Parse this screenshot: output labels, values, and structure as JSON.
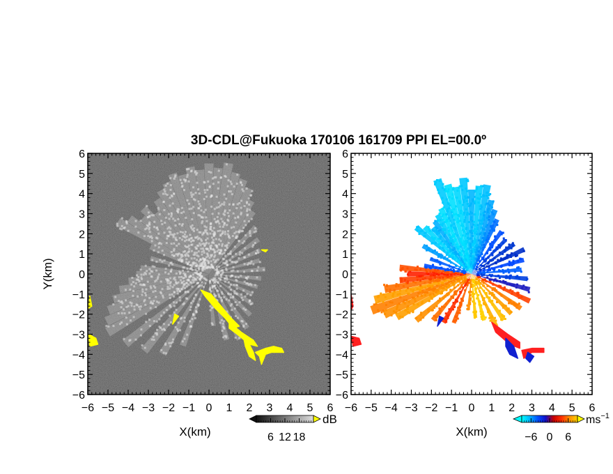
{
  "chart_data": {
    "type": "heatmap",
    "title": "3D-CDL@Fukuoka 170106 161709 PPI EL=00.0º",
    "panels": [
      {
        "id": "left",
        "quantity": "reflectivity (dB)",
        "xlabel": "X(km)",
        "ylabel": "Y(km)",
        "xlim": [
          -6,
          6
        ],
        "ylim": [
          -6,
          6
        ],
        "xticks": [
          "−6",
          "−5",
          "−4",
          "−3",
          "−2",
          "−1",
          "0",
          "1",
          "2",
          "3",
          "4",
          "5",
          "6"
        ],
        "yticks": [
          "6",
          "5",
          "4",
          "3",
          "2",
          "1",
          "0",
          "−1",
          "−2",
          "−3",
          "−4",
          "−5",
          "−6"
        ],
        "background": "#1e1e1e",
        "echo_color": "#e6e6e6",
        "clutter_color": "#ffff00",
        "colorbar": {
          "unit": "dB",
          "ticks": [
            "6",
            "12",
            "18"
          ],
          "tick_values": [
            6,
            12,
            18
          ],
          "range": [
            0,
            24
          ],
          "colors": [
            "#111111",
            "#555555",
            "#999999",
            "#dddddd"
          ],
          "extend_low": "#111111",
          "extend_high": "#ffff00"
        },
        "clutter_regions": [
          [
            [
              -5.9,
              -1.1
            ],
            [
              -5.8,
              -1.6
            ],
            [
              -5.95,
              -1.7
            ]
          ],
          [
            [
              -5.95,
              -3.0
            ],
            [
              -5.6,
              -3.2
            ],
            [
              -5.5,
              -3.5
            ],
            [
              -5.9,
              -3.6
            ]
          ],
          [
            [
              -0.4,
              -0.8
            ],
            [
              0.1,
              -1.0
            ],
            [
              0.6,
              -1.6
            ],
            [
              1.1,
              -2.2
            ],
            [
              1.5,
              -2.6
            ],
            [
              1.2,
              -2.7
            ],
            [
              0.8,
              -2.2
            ],
            [
              0.3,
              -1.7
            ],
            [
              -0.2,
              -1.1
            ]
          ],
          [
            [
              1.0,
              -2.4
            ],
            [
              1.6,
              -2.9
            ],
            [
              2.2,
              -3.3
            ],
            [
              2.4,
              -3.6
            ],
            [
              2.0,
              -3.5
            ],
            [
              1.4,
              -3.0
            ],
            [
              1.0,
              -2.7
            ]
          ],
          [
            [
              1.7,
              -3.1
            ],
            [
              2.0,
              -3.5
            ],
            [
              2.2,
              -3.9
            ],
            [
              2.3,
              -4.3
            ],
            [
              2.0,
              -4.1
            ],
            [
              1.8,
              -3.6
            ]
          ],
          [
            [
              2.3,
              -3.9
            ],
            [
              2.8,
              -3.7
            ],
            [
              3.2,
              -3.6
            ],
            [
              3.6,
              -3.7
            ],
            [
              3.7,
              -3.9
            ],
            [
              3.1,
              -3.9
            ],
            [
              2.8,
              -4.0
            ],
            [
              2.6,
              -4.5
            ],
            [
              2.5,
              -4.1
            ]
          ],
          [
            [
              -1.7,
              -2.0
            ],
            [
              -1.5,
              -2.1
            ],
            [
              -1.8,
              -2.5
            ]
          ],
          [
            [
              2.6,
              1.2
            ],
            [
              2.9,
              1.2
            ],
            [
              2.8,
              1.1
            ]
          ]
        ],
        "rays": [
          {
            "az": 300,
            "len": 5.2
          },
          {
            "az": 305,
            "len": 4.8
          },
          {
            "az": 310,
            "len": 4.3
          },
          {
            "az": 315,
            "len": 4.6
          },
          {
            "az": 320,
            "len": 4.0
          },
          {
            "az": 325,
            "len": 4.5
          },
          {
            "az": 330,
            "len": 4.8
          },
          {
            "az": 335,
            "len": 5.0
          },
          {
            "az": 340,
            "len": 5.3
          },
          {
            "az": 345,
            "len": 5.1
          },
          {
            "az": 350,
            "len": 5.4
          },
          {
            "az": 355,
            "len": 5.2
          },
          {
            "az": 0,
            "len": 5.5
          },
          {
            "az": 5,
            "len": 5.3
          },
          {
            "az": 10,
            "len": 5.6
          },
          {
            "az": 15,
            "len": 5.2
          },
          {
            "az": 20,
            "len": 5.0
          },
          {
            "az": 25,
            "len": 4.7
          },
          {
            "az": 30,
            "len": 4.2
          },
          {
            "az": 35,
            "len": 3.8
          },
          {
            "az": 45,
            "len": 3.3
          },
          {
            "az": 55,
            "len": 3.0
          },
          {
            "az": 65,
            "len": 2.8
          },
          {
            "az": 75,
            "len": 2.6
          },
          {
            "az": 85,
            "len": 2.8
          },
          {
            "az": 95,
            "len": 2.6
          },
          {
            "az": 105,
            "len": 2.5
          },
          {
            "az": 115,
            "len": 2.4
          },
          {
            "az": 125,
            "len": 2.6
          },
          {
            "az": 135,
            "len": 2.9
          },
          {
            "az": 145,
            "len": 3.3
          },
          {
            "az": 155,
            "len": 3.6
          },
          {
            "az": 165,
            "len": 3.4
          },
          {
            "az": 175,
            "len": 2.6
          },
          {
            "az": 200,
            "len": 3.8
          },
          {
            "az": 210,
            "len": 4.6
          },
          {
            "az": 220,
            "len": 5.0
          },
          {
            "az": 230,
            "len": 5.4
          },
          {
            "az": 240,
            "len": 5.8
          },
          {
            "az": 245,
            "len": 5.6
          },
          {
            "az": 250,
            "len": 5.3
          },
          {
            "az": 255,
            "len": 4.9
          },
          {
            "az": 260,
            "len": 4.5
          },
          {
            "az": 265,
            "len": 4.0
          },
          {
            "az": 270,
            "len": 3.6
          },
          {
            "az": 275,
            "len": 3.4
          },
          {
            "az": 285,
            "len": 3.0
          },
          {
            "az": 295,
            "len": 3.2
          }
        ]
      },
      {
        "id": "right",
        "quantity": "Doppler velocity (m s⁻¹)",
        "xlabel": "X(km)",
        "xlim": [
          -6,
          6
        ],
        "ylim": [
          -6,
          6
        ],
        "xticks": [
          "−6",
          "−5",
          "−4",
          "−3",
          "−2",
          "−1",
          "0",
          "1",
          "2",
          "3",
          "4",
          "5",
          "6"
        ],
        "yticks": [
          "6",
          "5",
          "4",
          "3",
          "2",
          "1",
          "0",
          "−1",
          "−2",
          "−3",
          "−4",
          "−5",
          "−6"
        ],
        "background": "#ffffff",
        "colorbar": {
          "unit": "ms",
          "unit_exponent": "−1",
          "ticks": [
            "−6",
            "0",
            "6"
          ],
          "tick_values": [
            -6,
            0,
            6
          ],
          "range": [
            -9,
            9
          ],
          "colors": [
            "#00ffff",
            "#00b4ff",
            "#0050ff",
            "#1010c8",
            "#c80000",
            "#ff3000",
            "#ff9000",
            "#ffd000"
          ],
          "extend_low": "#00ffff",
          "extend_high": "#ffff00"
        },
        "velocity_rays": [
          {
            "az": 310,
            "len": 3.6,
            "color": "#00c8ff"
          },
          {
            "az": 315,
            "len": 3.3,
            "color": "#00d8ff"
          },
          {
            "az": 320,
            "len": 3.0,
            "color": "#00c0ff"
          },
          {
            "az": 325,
            "len": 3.2,
            "color": "#00b0ff"
          },
          {
            "az": 330,
            "len": 3.4,
            "color": "#00d0ff"
          },
          {
            "az": 335,
            "len": 3.6,
            "color": "#00e0ff"
          },
          {
            "az": 340,
            "len": 5.0,
            "color": "#00ccff"
          },
          {
            "az": 345,
            "len": 4.6,
            "color": "#00e0ff"
          },
          {
            "az": 350,
            "len": 4.4,
            "color": "#00d8ff"
          },
          {
            "az": 355,
            "len": 4.8,
            "color": "#00c8ff"
          },
          {
            "az": 0,
            "len": 4.2,
            "color": "#00b8ff"
          },
          {
            "az": 5,
            "len": 4.4,
            "color": "#00d0ff"
          },
          {
            "az": 10,
            "len": 4.5,
            "color": "#00c0ff"
          },
          {
            "az": 15,
            "len": 3.8,
            "color": "#00a8ff"
          },
          {
            "az": 20,
            "len": 3.4,
            "color": "#0090ff"
          },
          {
            "az": 25,
            "len": 3.0,
            "color": "#0070ff"
          },
          {
            "az": 35,
            "len": 2.6,
            "color": "#0050ff"
          },
          {
            "az": 45,
            "len": 2.4,
            "color": "#0040e0"
          },
          {
            "az": 55,
            "len": 2.6,
            "color": "#0038d0"
          },
          {
            "az": 65,
            "len": 2.9,
            "color": "#0030c8"
          },
          {
            "az": 75,
            "len": 2.7,
            "color": "#0048ff"
          },
          {
            "az": 85,
            "len": 2.5,
            "color": "#0060ff"
          },
          {
            "az": 95,
            "len": 2.8,
            "color": "#0040e0"
          },
          {
            "az": 105,
            "len": 3.0,
            "color": "#2020c0"
          },
          {
            "az": 115,
            "len": 3.2,
            "color": "#ff4000"
          },
          {
            "az": 125,
            "len": 3.0,
            "color": "#ff8000"
          },
          {
            "az": 135,
            "len": 2.8,
            "color": "#ffa000"
          },
          {
            "az": 145,
            "len": 2.8,
            "color": "#ffc000"
          },
          {
            "az": 155,
            "len": 2.9,
            "color": "#ffb000"
          },
          {
            "az": 165,
            "len": 2.4,
            "color": "#ffd000"
          },
          {
            "az": 175,
            "len": 2.2,
            "color": "#ffc800"
          },
          {
            "az": 185,
            "len": 1.8,
            "color": "#ff9000"
          },
          {
            "az": 200,
            "len": 2.6,
            "color": "#ff6000"
          },
          {
            "az": 210,
            "len": 2.8,
            "color": "#ff3000"
          },
          {
            "az": 220,
            "len": 3.0,
            "color": "#ff7000"
          },
          {
            "az": 230,
            "len": 3.6,
            "color": "#ff9000"
          },
          {
            "az": 240,
            "len": 4.3,
            "color": "#ffa000"
          },
          {
            "az": 245,
            "len": 4.8,
            "color": "#ff9000"
          },
          {
            "az": 250,
            "len": 5.3,
            "color": "#ff8000"
          },
          {
            "az": 255,
            "len": 5.0,
            "color": "#ffa000"
          },
          {
            "az": 260,
            "len": 4.4,
            "color": "#ff7000"
          },
          {
            "az": 265,
            "len": 3.6,
            "color": "#ff4000"
          },
          {
            "az": 270,
            "len": 3.2,
            "color": "#ff2000"
          },
          {
            "az": 275,
            "len": 3.6,
            "color": "#ff5000"
          },
          {
            "az": 280,
            "len": 2.4,
            "color": "#0050ff"
          },
          {
            "az": 290,
            "len": 2.2,
            "color": "#0060ff"
          },
          {
            "az": 300,
            "len": 2.8,
            "color": "#00a0ff"
          }
        ],
        "clutter_regions": [
          {
            "color": "#ff2020",
            "points": [
              [
                1.0,
                -2.4
              ],
              [
                1.8,
                -3.0
              ],
              [
                2.4,
                -3.4
              ],
              [
                2.4,
                -3.7
              ],
              [
                1.9,
                -3.5
              ],
              [
                1.2,
                -2.9
              ]
            ]
          },
          {
            "color": "#1020d0",
            "points": [
              [
                1.7,
                -3.2
              ],
              [
                2.1,
                -3.6
              ],
              [
                2.3,
                -4.2
              ],
              [
                1.9,
                -4.0
              ],
              [
                1.7,
                -3.6
              ]
            ]
          },
          {
            "color": "#ff2020",
            "points": [
              [
                2.5,
                -3.8
              ],
              [
                3.0,
                -3.7
              ],
              [
                3.6,
                -3.7
              ],
              [
                3.6,
                -3.9
              ],
              [
                3.0,
                -3.9
              ],
              [
                2.6,
                -4.2
              ]
            ]
          },
          {
            "color": "#1020d0",
            "points": [
              [
                2.8,
                -3.9
              ],
              [
                3.1,
                -4.1
              ],
              [
                2.9,
                -4.4
              ],
              [
                2.7,
                -4.2
              ]
            ]
          },
          {
            "color": "#ff2020",
            "points": [
              [
                -6.0,
                -1.0
              ],
              [
                -5.9,
                -1.6
              ],
              [
                -6.0,
                -1.8
              ]
            ]
          },
          {
            "color": "#ff2020",
            "points": [
              [
                -6.0,
                -3.1
              ],
              [
                -5.6,
                -3.2
              ],
              [
                -5.5,
                -3.5
              ],
              [
                -5.9,
                -3.6
              ]
            ]
          },
          {
            "color": "#1020d0",
            "points": [
              [
                -1.6,
                -2.1
              ],
              [
                -1.4,
                -2.2
              ],
              [
                -1.7,
                -2.6
              ]
            ]
          }
        ]
      }
    ]
  }
}
